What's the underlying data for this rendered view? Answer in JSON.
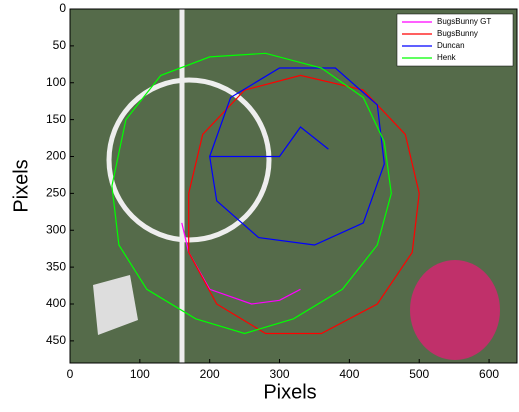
{
  "chart_data": {
    "type": "line",
    "xlabel": "Pixels",
    "ylabel": "Pixels",
    "xlim": [
      0,
      640
    ],
    "ylim": [
      480,
      0
    ],
    "y_inverted": true,
    "xticks": [
      0,
      100,
      200,
      300,
      400,
      500,
      600
    ],
    "yticks": [
      0,
      50,
      100,
      150,
      200,
      250,
      300,
      350,
      400,
      450
    ],
    "grid": false,
    "legend": "upper right",
    "series": [
      {
        "name": "BugsBunny GT",
        "color": "#ff00ff",
        "x": [
          160,
          170,
          200,
          260,
          300,
          330
        ],
        "values": [
          290,
          330,
          380,
          400,
          395,
          380
        ]
      },
      {
        "name": "BugsBunny",
        "color": "#ff0000",
        "x": [
          170,
          190,
          250,
          330,
          420,
          480,
          500,
          490,
          440,
          360,
          280,
          210,
          170,
          170
        ],
        "values": [
          250,
          170,
          110,
          90,
          110,
          170,
          250,
          330,
          400,
          440,
          440,
          400,
          330,
          250
        ]
      },
      {
        "name": "Duncan",
        "color": "#0000ff",
        "x": [
          200,
          230,
          300,
          380,
          440,
          450,
          420,
          350,
          270,
          210,
          200,
          300,
          330,
          370
        ],
        "values": [
          200,
          120,
          80,
          80,
          130,
          210,
          290,
          320,
          310,
          260,
          200,
          200,
          160,
          190
        ]
      },
      {
        "name": "Henk",
        "color": "#00ff00",
        "x": [
          60,
          80,
          130,
          200,
          280,
          360,
          420,
          450,
          460,
          440,
          390,
          320,
          250,
          180,
          110,
          70,
          60
        ],
        "values": [
          240,
          150,
          90,
          65,
          60,
          80,
          120,
          180,
          250,
          320,
          380,
          420,
          440,
          420,
          380,
          320,
          240
        ]
      }
    ]
  }
}
